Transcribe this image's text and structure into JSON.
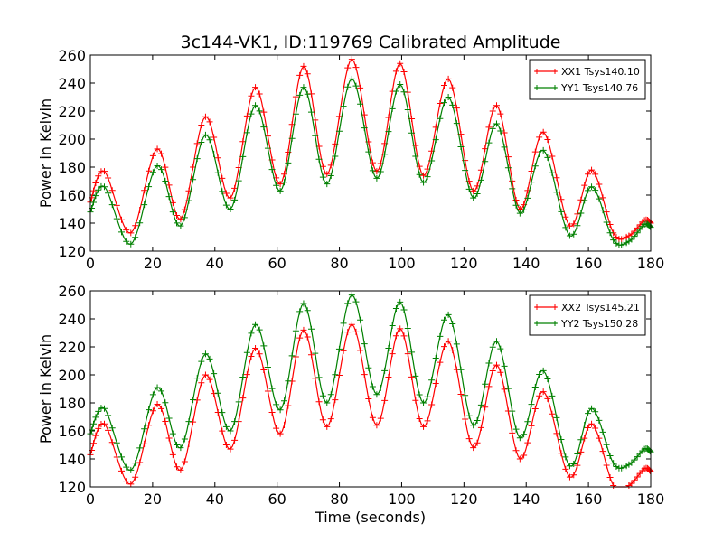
{
  "chart_data": [
    {
      "type": "line",
      "title": "3c144-VK1, ID:119769 Calibrated Amplitude",
      "xlabel": "",
      "ylabel": "Power in Kelvin",
      "xlim": [
        0,
        180
      ],
      "ylim": [
        120,
        260
      ],
      "xticks": [
        0,
        20,
        40,
        60,
        80,
        100,
        120,
        140,
        160,
        180
      ],
      "yticks": [
        120,
        140,
        160,
        180,
        200,
        220,
        240,
        260
      ],
      "grid": false,
      "legend_position": "top-right",
      "marker": "+",
      "series": [
        {
          "name": "XX1 Tsys140.10",
          "color": "#ff0000",
          "x": [
            0,
            4.5,
            13,
            21.5,
            29,
            37,
            45,
            53,
            61,
            68.5,
            76,
            84,
            92,
            99.5,
            107,
            115,
            123,
            130.5,
            138,
            145.5,
            154,
            161,
            168,
            173,
            178,
            180
          ],
          "y": [
            155,
            177,
            133,
            193,
            143,
            216,
            158,
            237,
            168,
            252,
            175,
            257,
            177,
            254,
            174,
            243,
            163,
            224,
            150,
            205,
            138,
            178,
            133,
            131,
            142,
            140
          ]
        },
        {
          "name": "YY1 Tsys140.76",
          "color": "#008000",
          "x": [
            0,
            4.5,
            13,
            21.5,
            29,
            37,
            45,
            53,
            61,
            68.5,
            76,
            84,
            92,
            99.5,
            107,
            115,
            123,
            130.5,
            138,
            145.5,
            154,
            161,
            168,
            173,
            178,
            180
          ],
          "y": [
            148,
            166,
            125,
            181,
            138,
            203,
            150,
            224,
            163,
            237,
            168,
            243,
            172,
            239,
            169,
            230,
            158,
            211,
            147,
            192,
            131,
            166,
            128,
            127,
            139,
            137
          ]
        }
      ]
    },
    {
      "type": "line",
      "title": "",
      "xlabel": "Time (seconds)",
      "ylabel": "Power in Kelvin",
      "xlim": [
        0,
        180
      ],
      "ylim": [
        120,
        260
      ],
      "xticks": [
        0,
        20,
        40,
        60,
        80,
        100,
        120,
        140,
        160,
        180
      ],
      "yticks": [
        120,
        140,
        160,
        180,
        200,
        220,
        240,
        260
      ],
      "grid": false,
      "legend_position": "top-right",
      "marker": "+",
      "series": [
        {
          "name": "XX2 Tsys145.21",
          "color": "#ff0000",
          "x": [
            0,
            4.5,
            13,
            21.5,
            29,
            37,
            45,
            53,
            61,
            68.5,
            76,
            84,
            92,
            99.5,
            107,
            115,
            123,
            130.5,
            138,
            145.5,
            154,
            161,
            168,
            173,
            178,
            180
          ],
          "y": [
            143,
            165,
            122,
            179,
            132,
            200,
            147,
            219,
            158,
            232,
            163,
            236,
            164,
            233,
            163,
            224,
            148,
            207,
            140,
            188,
            127,
            165,
            121,
            121,
            133,
            131
          ]
        },
        {
          "name": "YY2 Tsys150.28",
          "color": "#008000",
          "x": [
            0,
            4.5,
            13,
            21.5,
            29,
            37,
            45,
            53,
            61,
            68.5,
            76,
            84,
            92,
            99.5,
            107,
            115,
            123,
            130.5,
            138,
            145.5,
            154,
            161,
            168,
            173,
            178,
            180
          ],
          "y": [
            158,
            176,
            132,
            191,
            148,
            215,
            160,
            236,
            175,
            251,
            180,
            257,
            186,
            252,
            180,
            243,
            164,
            224,
            155,
            203,
            135,
            176,
            137,
            136,
            147,
            145
          ]
        }
      ]
    }
  ]
}
